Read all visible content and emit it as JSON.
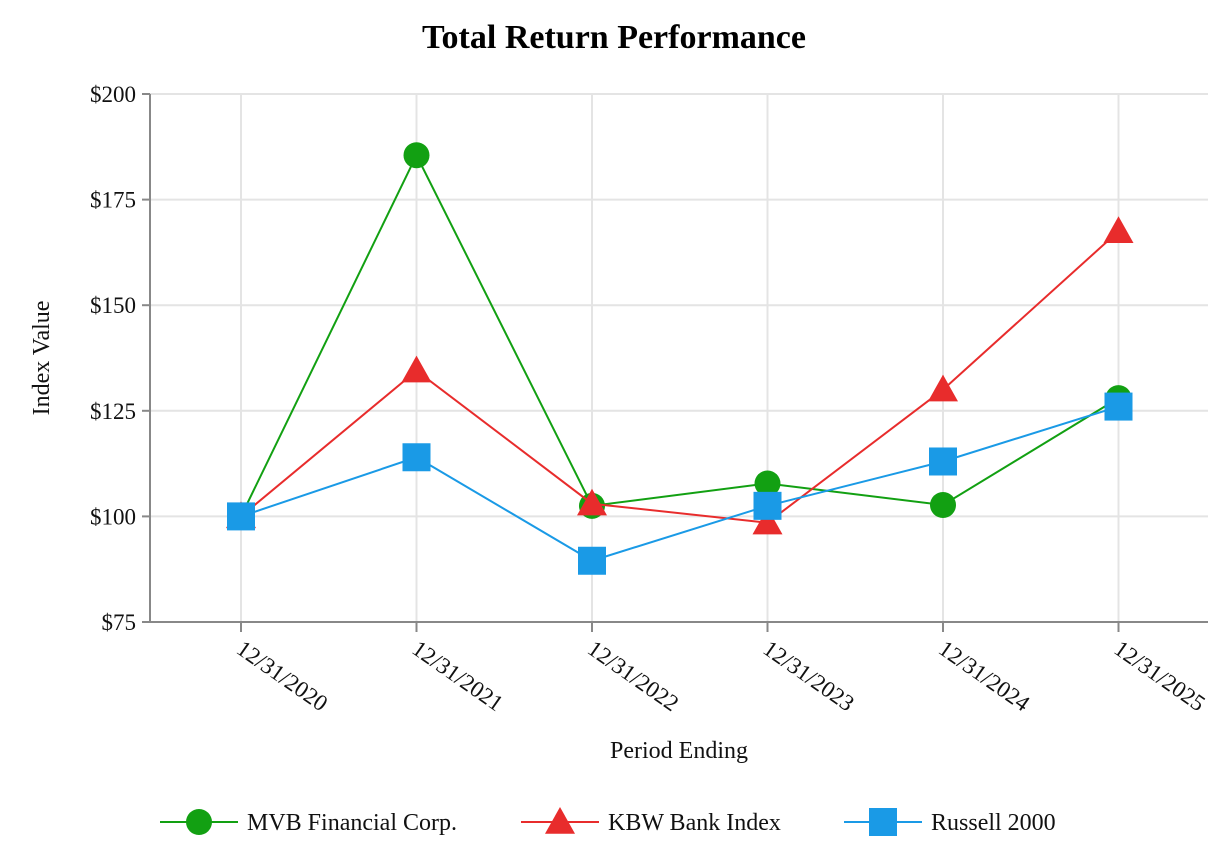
{
  "chart_data": {
    "type": "line",
    "title": "Total Return Performance",
    "xlabel": "Period Ending",
    "ylabel": "Index Value",
    "categories": [
      "12/31/2020",
      "12/31/2021",
      "12/31/2022",
      "12/31/2023",
      "12/31/2024",
      "12/31/2025"
    ],
    "ylim": [
      75,
      200
    ],
    "yticks": [
      75,
      100,
      125,
      150,
      175,
      200
    ],
    "ytick_labels": [
      "$75",
      "$100",
      "$125",
      "$150",
      "$175",
      "$200"
    ],
    "grid": true,
    "legend": "bottom",
    "series": [
      {
        "name": "MVB Financial Corp.",
        "color": "#12a012",
        "marker": "circle",
        "values": [
          100.0,
          185.5,
          102.5,
          107.8,
          102.7,
          128.0
        ]
      },
      {
        "name": "KBW Bank Index",
        "color": "#e82c2c",
        "marker": "triangle",
        "values": [
          100.0,
          134.5,
          103.0,
          98.5,
          130.0,
          167.5
        ]
      },
      {
        "name": "Russell 2000",
        "color": "#1a9ae6",
        "marker": "square",
        "values": [
          100.0,
          114.0,
          89.5,
          102.5,
          113.0,
          126.0
        ]
      }
    ]
  }
}
